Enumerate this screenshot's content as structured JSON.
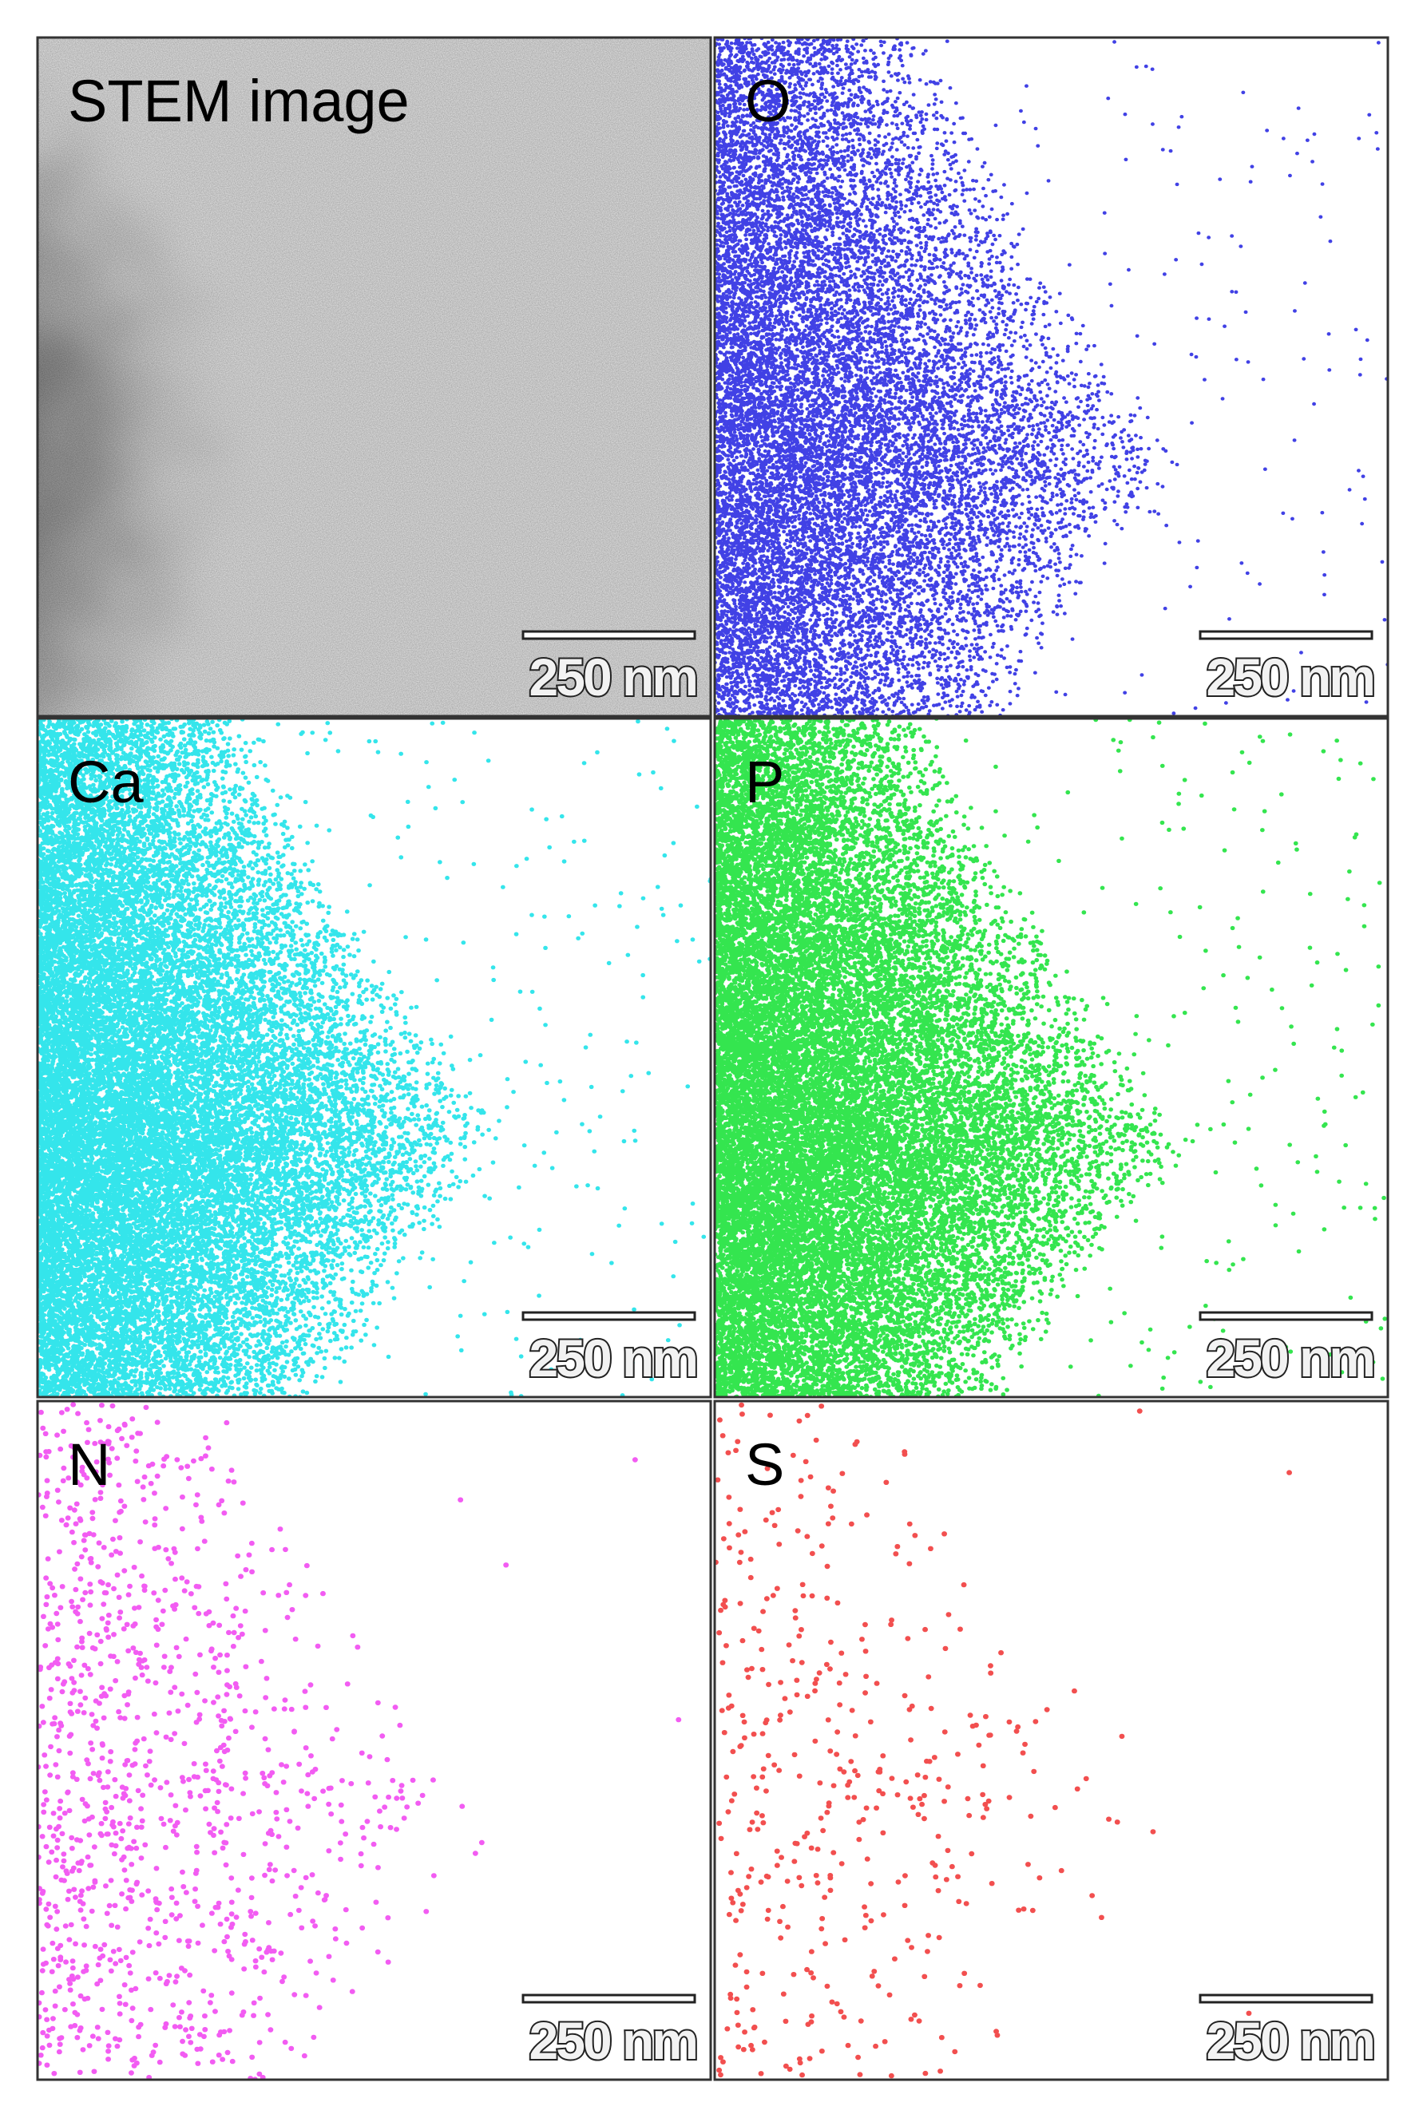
{
  "panels": [
    {
      "label": "STEM image",
      "scale_bar": "250 nm"
    },
    {
      "label": "O",
      "scale_bar": "250 nm"
    },
    {
      "label": "Ca",
      "scale_bar": "250 nm"
    },
    {
      "label": "P",
      "scale_bar": "250 nm"
    },
    {
      "label": "N",
      "scale_bar": "250 nm"
    },
    {
      "label": "S",
      "scale_bar": "250 nm"
    }
  ]
}
